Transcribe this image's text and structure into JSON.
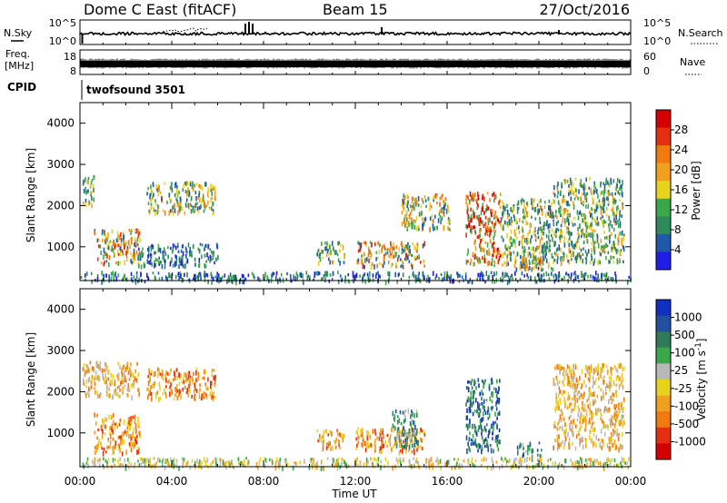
{
  "header": {
    "title": "Dome C East (fitACF)",
    "beam": "Beam 15",
    "date": "27/Oct/2016",
    "cpid_label": "CPID",
    "cpid_value": "twofsound 3501"
  },
  "aux_panels": {
    "nsky": {
      "label": "N.Sky",
      "right_label": "N.Search",
      "left_ticks": [
        "10^5",
        "10^0"
      ],
      "right_ticks": [
        "10^5",
        "10^0"
      ]
    },
    "freq": {
      "label_top": "Freq.",
      "label_bottom": "[MHz]",
      "left_ticks": [
        "18",
        "8"
      ],
      "right_ticks": [
        "60",
        "0"
      ],
      "right_label": "Nave"
    }
  },
  "colors": {
    "power_scale": [
      "#1e1ee6",
      "#1f5aa8",
      "#2f8a5a",
      "#3aa84a",
      "#e8d21e",
      "#f0a01e",
      "#ef7a10",
      "#e43010",
      "#d40000"
    ],
    "velocity_scale": [
      "#1030c0",
      "#2050a0",
      "#307a5a",
      "#3aa84a",
      "#b8b8b8",
      "#e8d21e",
      "#f0a020",
      "#ee7a10",
      "#e43010",
      "#d40000"
    ]
  },
  "chart_data": [
    {
      "type": "heatmap",
      "name": "power",
      "xlabel": "",
      "ylabel": "Slant Range [km]",
      "x_range_hours": [
        0,
        24
      ],
      "ylim": [
        180,
        4500
      ],
      "yticks": [
        1000,
        2000,
        3000,
        4000
      ],
      "colorbar": {
        "label": "Power [dB]",
        "range": [
          0,
          32
        ],
        "ticks": [
          4,
          8,
          12,
          16,
          20,
          24,
          28
        ]
      },
      "echo_regions": [
        {
          "t": [
            0.1,
            0.6
          ],
          "r": [
            2000,
            2750
          ],
          "level": "weak-mid"
        },
        {
          "t": [
            0.6,
            2.6
          ],
          "r": [
            600,
            1450
          ],
          "level": "mixed-strong"
        },
        {
          "t": [
            2.9,
            5.9
          ],
          "r": [
            1850,
            2600
          ],
          "level": "mixed"
        },
        {
          "t": [
            2.5,
            6.0
          ],
          "r": [
            550,
            1100
          ],
          "level": "weak"
        },
        {
          "t": [
            10.3,
            11.5
          ],
          "r": [
            650,
            1150
          ],
          "level": "weak-mid"
        },
        {
          "t": [
            12.0,
            15.0
          ],
          "r": [
            550,
            1150
          ],
          "level": "mixed-strong"
        },
        {
          "t": [
            14.0,
            16.1
          ],
          "r": [
            1450,
            2300
          ],
          "level": "mixed"
        },
        {
          "t": [
            16.8,
            18.3
          ],
          "r": [
            600,
            2350
          ],
          "level": "strong"
        },
        {
          "t": [
            18.3,
            20.6
          ],
          "r": [
            480,
            2200
          ],
          "level": "weak-mid"
        },
        {
          "t": [
            19.2,
            20.1
          ],
          "r": [
            480,
            780
          ],
          "level": "strong"
        },
        {
          "t": [
            20.6,
            23.7
          ],
          "r": [
            650,
            2700
          ],
          "level": "weak-mid"
        },
        {
          "t": [
            0.0,
            24.0
          ],
          "r": [
            190,
            420
          ],
          "level": "weak"
        }
      ]
    },
    {
      "type": "heatmap",
      "name": "velocity",
      "xlabel": "Time UT",
      "ylabel": "Slant Range [km]",
      "x_range_hours": [
        0,
        24
      ],
      "xticks": [
        "00:00",
        "04:00",
        "08:00",
        "12:00",
        "16:00",
        "20:00",
        "00:00"
      ],
      "ylim": [
        180,
        4500
      ],
      "yticks": [
        1000,
        2000,
        3000,
        4000
      ],
      "colorbar": {
        "label": "Velocity [m s^-1]",
        "ticks": [
          "1000",
          "500",
          "100",
          "25",
          "-25",
          "-100",
          "-500",
          "-1000"
        ]
      },
      "echo_regions": [
        {
          "t": [
            0.6,
            2.6
          ],
          "r": [
            550,
            1500
          ],
          "level": "away"
        },
        {
          "t": [
            0.1,
            2.6
          ],
          "r": [
            1900,
            2750
          ],
          "level": "away-weak"
        },
        {
          "t": [
            2.9,
            5.9
          ],
          "r": [
            1850,
            2600
          ],
          "level": "away"
        },
        {
          "t": [
            10.3,
            11.5
          ],
          "r": [
            650,
            1100
          ],
          "level": "away"
        },
        {
          "t": [
            12.0,
            15.0
          ],
          "r": [
            550,
            1150
          ],
          "level": "away"
        },
        {
          "t": [
            13.6,
            14.7
          ],
          "r": [
            700,
            1600
          ],
          "level": "toward"
        },
        {
          "t": [
            16.8,
            18.3
          ],
          "r": [
            600,
            2350
          ],
          "level": "toward-strong"
        },
        {
          "t": [
            19.0,
            20.1
          ],
          "r": [
            450,
            800
          ],
          "level": "toward"
        },
        {
          "t": [
            20.6,
            23.7
          ],
          "r": [
            650,
            2700
          ],
          "level": "away-weak"
        },
        {
          "t": [
            0.0,
            24.0
          ],
          "r": [
            190,
            420
          ],
          "level": "mixed-low"
        }
      ]
    }
  ]
}
